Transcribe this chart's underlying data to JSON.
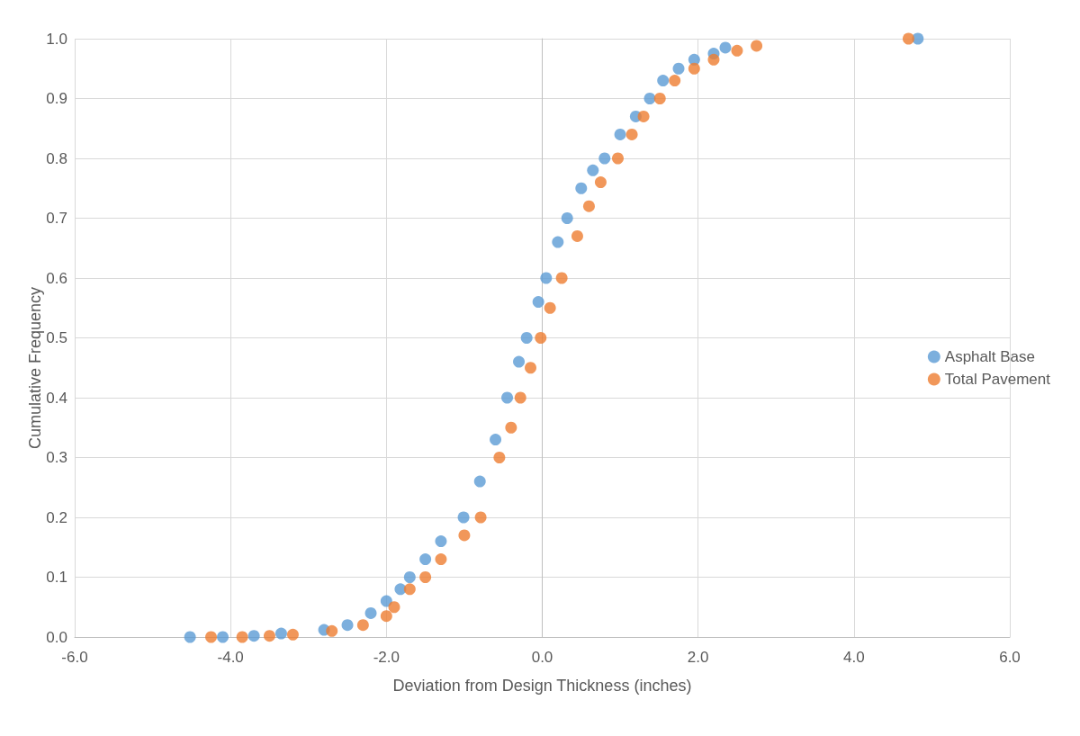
{
  "chart_data": {
    "type": "scatter",
    "xlabel": "Deviation from Design Thickness (inches)",
    "ylabel": "Cumulative Frequency",
    "xlim": [
      -6,
      6
    ],
    "xticks": [
      {
        "value": -6,
        "label": "-6.0"
      },
      {
        "value": -4,
        "label": "-4.0"
      },
      {
        "value": -2,
        "label": "-2.0"
      },
      {
        "value": 0,
        "label": "0.0"
      },
      {
        "value": 2,
        "label": "2.0"
      },
      {
        "value": 4,
        "label": "4.0"
      },
      {
        "value": 6,
        "label": "6.0"
      }
    ],
    "ylim": [
      0,
      1
    ],
    "yticks": [
      {
        "value": 0,
        "label": "0.0"
      },
      {
        "value": 0.1,
        "label": "0.1"
      },
      {
        "value": 0.2,
        "label": "0.2"
      },
      {
        "value": 0.3,
        "label": "0.3"
      },
      {
        "value": 0.4,
        "label": "0.4"
      },
      {
        "value": 0.5,
        "label": "0.5"
      },
      {
        "value": 0.6,
        "label": "0.6"
      },
      {
        "value": 0.7,
        "label": "0.7"
      },
      {
        "value": 0.8,
        "label": "0.8"
      },
      {
        "value": 0.9,
        "label": "0.9"
      },
      {
        "value": 1,
        "label": "1.0"
      }
    ],
    "grid": true,
    "legend": "right",
    "marker": "circle",
    "series": [
      {
        "name": "Asphalt Base",
        "color": "#5b9bd5",
        "x": [
          -4.52,
          -4.1,
          -3.7,
          -3.35,
          -2.8,
          -2.5,
          -2.2,
          -2.0,
          -1.82,
          -1.7,
          -1.5,
          -1.3,
          -1.01,
          -0.8,
          -0.6,
          -0.45,
          -0.3,
          -0.2,
          -0.05,
          0.05,
          0.2,
          0.32,
          0.5,
          0.65,
          0.8,
          1.0,
          1.2,
          1.38,
          1.55,
          1.75,
          1.95,
          2.2,
          2.35,
          4.82
        ],
        "values": [
          0,
          0,
          0.002,
          0.006,
          0.012,
          0.02,
          0.04,
          0.06,
          0.08,
          0.1,
          0.13,
          0.16,
          0.2,
          0.26,
          0.33,
          0.4,
          0.46,
          0.5,
          0.56,
          0.6,
          0.66,
          0.7,
          0.75,
          0.78,
          0.8,
          0.84,
          0.87,
          0.9,
          0.93,
          0.95,
          0.965,
          0.975,
          0.985,
          1
        ]
      },
      {
        "name": "Total Pavement",
        "color": "#ed7d31",
        "x": [
          -4.25,
          -3.85,
          -3.5,
          -3.2,
          -2.7,
          -2.3,
          -2.0,
          -1.9,
          -1.7,
          -1.5,
          -1.3,
          -1.0,
          -0.79,
          -0.55,
          -0.4,
          -0.28,
          -0.15,
          -0.02,
          0.1,
          0.25,
          0.45,
          0.6,
          0.75,
          0.97,
          1.15,
          1.3,
          1.51,
          1.7,
          1.95,
          2.2,
          2.5,
          2.75,
          4.7
        ],
        "values": [
          0,
          0,
          0.002,
          0.004,
          0.01,
          0.02,
          0.035,
          0.05,
          0.08,
          0.1,
          0.13,
          0.17,
          0.2,
          0.3,
          0.35,
          0.4,
          0.45,
          0.5,
          0.55,
          0.6,
          0.67,
          0.72,
          0.76,
          0.8,
          0.84,
          0.87,
          0.9,
          0.93,
          0.95,
          0.965,
          0.98,
          0.988,
          1
        ]
      }
    ]
  }
}
